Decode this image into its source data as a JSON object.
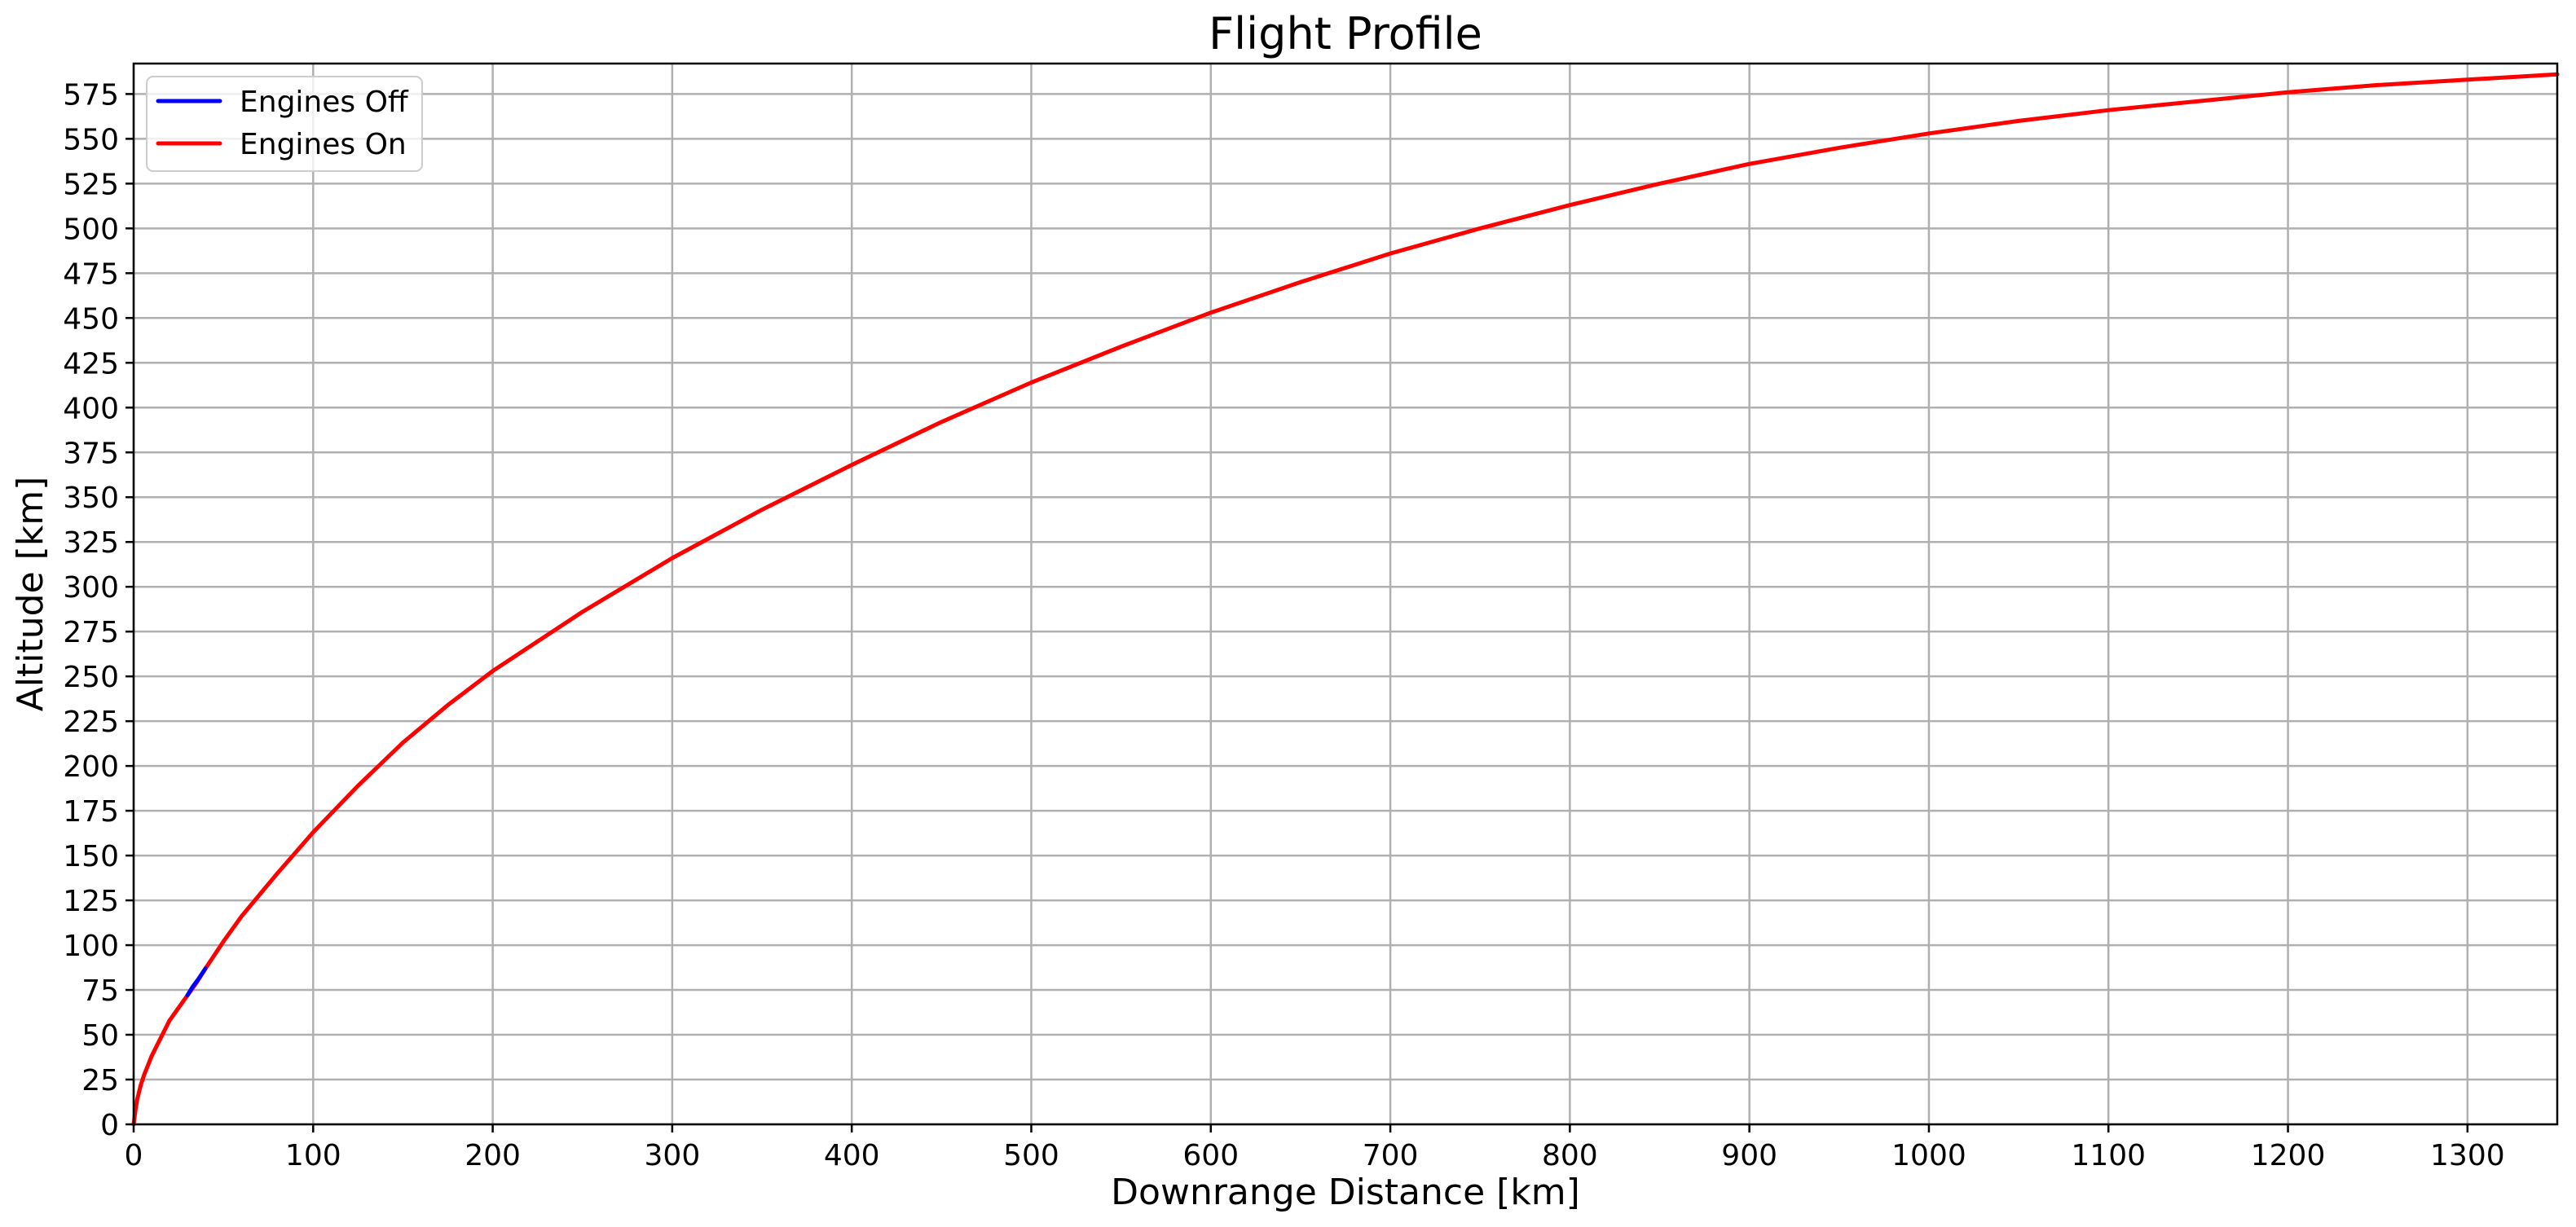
{
  "chart_data": {
    "type": "line",
    "title": "Flight Profile",
    "xlabel": "Downrange Distance [km]",
    "ylabel": "Altitude [km]",
    "xlim": [
      0,
      1350
    ],
    "ylim": [
      0,
      592
    ],
    "xticks": [
      0,
      100,
      200,
      300,
      400,
      500,
      600,
      700,
      800,
      900,
      1000,
      1100,
      1200,
      1300
    ],
    "yticks": [
      0,
      25,
      50,
      75,
      100,
      125,
      150,
      175,
      200,
      225,
      250,
      275,
      300,
      325,
      350,
      375,
      400,
      425,
      450,
      475,
      500,
      525,
      550,
      575
    ],
    "grid": true,
    "legend_position": "top-left",
    "series": [
      {
        "name": "Engines Off",
        "color": "#0000ff",
        "x": [
          30,
          33,
          36,
          40
        ],
        "y": [
          72,
          77,
          81,
          87
        ]
      },
      {
        "name": "Engines On",
        "color": "#ff0000",
        "x": [
          0,
          1,
          2,
          4,
          6,
          10,
          15,
          20,
          25,
          30,
          35,
          40,
          50,
          60,
          80,
          100,
          125,
          150,
          175,
          200,
          250,
          300,
          350,
          400,
          450,
          500,
          550,
          600,
          650,
          700,
          750,
          800,
          850,
          900,
          950,
          1000,
          1050,
          1100,
          1150,
          1200,
          1250,
          1300,
          1350
        ],
        "y": [
          0,
          8,
          14,
          22,
          28,
          38,
          48,
          58,
          65,
          72,
          79,
          87,
          102,
          116,
          140,
          163,
          189,
          213,
          234,
          253,
          286,
          316,
          343,
          368,
          392,
          414,
          434,
          453,
          470,
          486,
          500,
          513,
          525,
          536,
          545,
          553,
          560,
          566,
          571,
          576,
          580,
          583,
          586
        ]
      }
    ]
  }
}
